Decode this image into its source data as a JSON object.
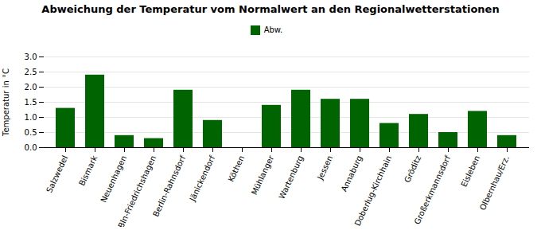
{
  "chart_data": {
    "type": "bar",
    "title": "Abweichung der Temperatur vom Normalwert an den Regionalwetterstationen",
    "ylabel": "Temperatur in °C",
    "categories": [
      "Salzwedel",
      "Bismark",
      "Neuenhagen",
      "Bln-Friedrichshagen",
      "Berlin-Rahnsdorf",
      "Jänickendorf",
      "Köthen",
      "Mühlanger",
      "Wartenburg",
      "Jessen",
      "Annaburg",
      "Doberlug-Kirchhain",
      "Gröditz",
      "Großerkmannsdorf",
      "Eisleben",
      "Olbernhau/Erz."
    ],
    "series": [
      {
        "name": "Abw.",
        "color": "#006400",
        "values": [
          1.3,
          2.4,
          0.4,
          0.3,
          1.9,
          0.9,
          0.0,
          1.4,
          1.9,
          1.6,
          1.6,
          0.8,
          1.1,
          0.5,
          1.2,
          0.4
        ]
      }
    ],
    "ylim": [
      0.0,
      3.0
    ],
    "yticks": [
      {
        "value": 0,
        "label": "0.0"
      },
      0.5,
      {
        "value": 1,
        "label": "1.0"
      },
      1.5,
      {
        "value": 2,
        "label": "2.0"
      },
      2.5,
      {
        "value": 3,
        "label": "3.0"
      }
    ],
    "grid": true,
    "legend": "top"
  }
}
